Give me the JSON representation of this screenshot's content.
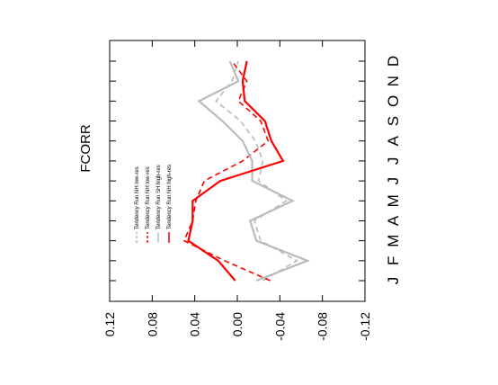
{
  "chart_data": {
    "type": "line",
    "title": "FCORR",
    "categories": [
      "J",
      "F",
      "M",
      "A",
      "M",
      "J",
      "J",
      "A",
      "S",
      "O",
      "N",
      "D"
    ],
    "series": [
      {
        "name": "Tendency Run NH low-res",
        "color": "#bbbbbb",
        "dashed": true,
        "values": [
          -0.024,
          -0.056,
          -0.022,
          -0.016,
          -0.046,
          -0.02,
          -0.024,
          -0.017,
          -0.003,
          0.02,
          0.005,
          -0.001
        ]
      },
      {
        "name": "Tendency Run NH low-res",
        "color": "#ff0000",
        "dashed": true,
        "values": [
          -0.031,
          0.012,
          0.05,
          0.042,
          0.039,
          0.031,
          -0.005,
          -0.029,
          -0.022,
          -0.001,
          -0.009,
          0.005
        ]
      },
      {
        "name": "Tendency Run SH high-res",
        "color": "#bbbbbb",
        "dashed": false,
        "values": [
          -0.018,
          -0.066,
          -0.018,
          -0.012,
          -0.052,
          -0.014,
          -0.014,
          -0.005,
          0.014,
          0.036,
          -0.001,
          0.007
        ]
      },
      {
        "name": "Tendency Run NH high-res",
        "color": "#ff0000",
        "dashed": false,
        "values": [
          0.002,
          0.018,
          0.046,
          0.042,
          0.042,
          0.016,
          -0.043,
          -0.032,
          -0.026,
          -0.007,
          -0.005,
          -0.009
        ]
      }
    ],
    "ylim": [
      -0.12,
      0.12
    ],
    "yticks": [
      0.12,
      0.08,
      0.04,
      {
        "value": 0,
        "label": "0.00"
      },
      -0.04,
      -0.08,
      -0.12
    ]
  }
}
